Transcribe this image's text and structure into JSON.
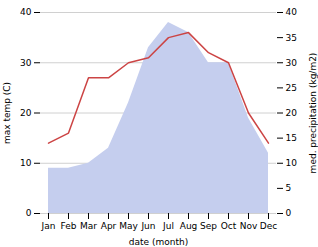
{
  "chart_data": {
    "type": "line",
    "xlabel": "date (month)",
    "ylabel": "max temp (C)",
    "y2label": "med. precipitation (kg/m2)",
    "categories": [
      "Jan",
      "Feb",
      "Mar",
      "Apr",
      "May",
      "Jun",
      "Jul",
      "Aug",
      "Sep",
      "Oct",
      "Nov",
      "Dec"
    ],
    "series": [
      {
        "type": "area",
        "axis": "y2",
        "color": "#c5ceee",
        "values": [
          9,
          9,
          10,
          13,
          22,
          33,
          38,
          36,
          30,
          30,
          19,
          12
        ]
      },
      {
        "type": "line",
        "color": "#cc4444",
        "values": [
          14,
          16,
          27,
          27,
          30,
          31,
          35,
          36,
          32,
          30,
          20,
          14
        ]
      }
    ],
    "ylim": [
      0,
      40
    ],
    "yticks": [
      0,
      10,
      20,
      30,
      40
    ],
    "y2lim": [
      0,
      40
    ],
    "y2ticks": [
      0,
      5,
      10,
      15,
      20,
      25,
      30,
      35,
      40
    ],
    "grid": true
  }
}
